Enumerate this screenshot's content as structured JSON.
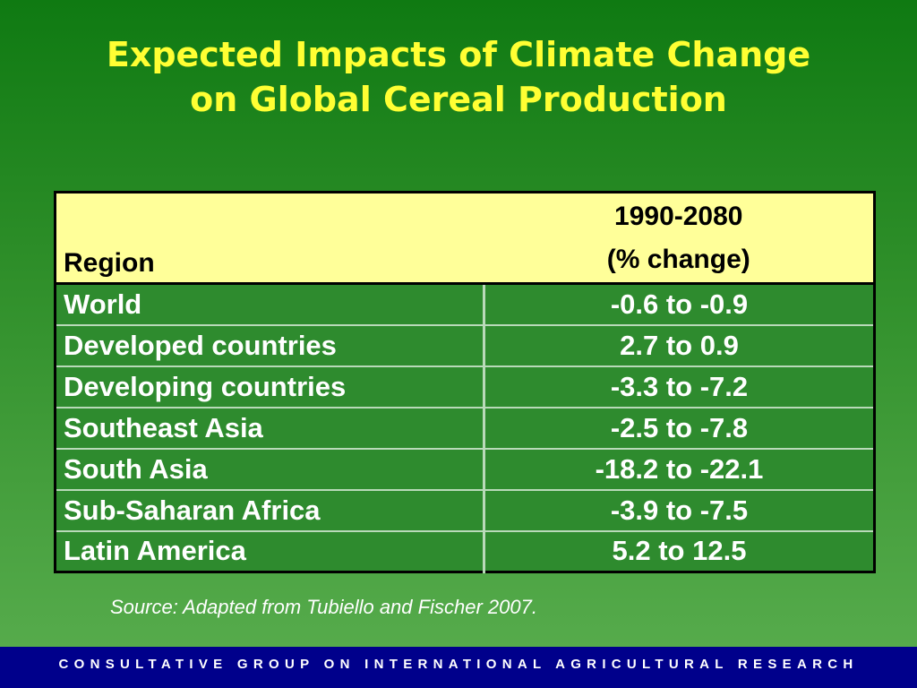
{
  "title": {
    "line1": "Expected Impacts of Climate Change",
    "line2": "on Global Cereal Production"
  },
  "table": {
    "header": {
      "region": "Region",
      "period": "1990-2080",
      "unit": "(% change)"
    },
    "rows": [
      {
        "region": "World",
        "change": "-0.6 to -0.9"
      },
      {
        "region": "Developed countries",
        "change": "2.7 to 0.9"
      },
      {
        "region": "Developing countries",
        "change": "-3.3 to -7.2"
      },
      {
        "region": "Southeast Asia",
        "change": "-2.5 to -7.8"
      },
      {
        "region": "South Asia",
        "change": "-18.2 to -22.1"
      },
      {
        "region": "Sub-Saharan Africa",
        "change": "-3.9 to -7.5"
      },
      {
        "region": "Latin America",
        "change": "5.2 to 12.5"
      }
    ]
  },
  "source": "Source: Adapted from Tubiello and Fischer 2007.",
  "footer": "CONSULTATIVE GROUP ON INTERNATIONAL AGRICULTURAL RESEARCH",
  "colors": {
    "title": "#ffff33",
    "header_background": "#ffff99",
    "table_background": "#2e8b2e",
    "footer_background": "#00008b"
  }
}
